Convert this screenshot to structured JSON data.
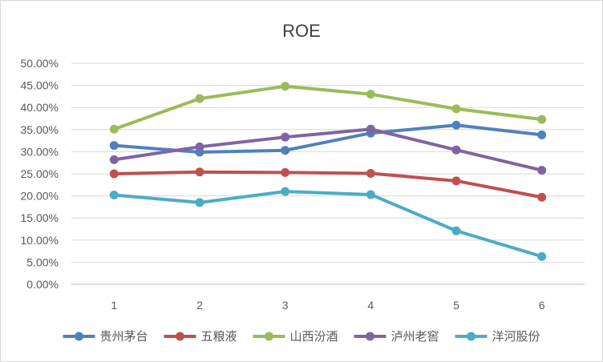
{
  "chart_data": {
    "type": "line",
    "title": "ROE",
    "xlabel": "",
    "ylabel": "",
    "categories": [
      "1",
      "2",
      "3",
      "4",
      "5",
      "6"
    ],
    "ylim": [
      0,
      0.5
    ],
    "yticks": [
      "0.00%",
      "5.00%",
      "10.00%",
      "15.00%",
      "20.00%",
      "25.00%",
      "30.00%",
      "35.00%",
      "40.00%",
      "45.00%",
      "50.00%"
    ],
    "grid": true,
    "legend_position": "bottom",
    "series": [
      {
        "name": "贵州茅台",
        "color": "#4f81bd",
        "values": [
          0.314,
          0.299,
          0.303,
          0.342,
          0.36,
          0.338
        ]
      },
      {
        "name": "五粮液",
        "color": "#c0504d",
        "values": [
          0.25,
          0.254,
          0.253,
          0.251,
          0.234,
          0.197
        ]
      },
      {
        "name": "山西汾酒",
        "color": "#9bbb59",
        "values": [
          0.351,
          0.42,
          0.448,
          0.43,
          0.397,
          0.373
        ]
      },
      {
        "name": "泸州老窖",
        "color": "#8064a2",
        "values": [
          0.282,
          0.311,
          0.333,
          0.351,
          0.304,
          0.258
        ]
      },
      {
        "name": "洋河股份",
        "color": "#4bacc6",
        "values": [
          0.202,
          0.185,
          0.21,
          0.203,
          0.121,
          0.063
        ]
      }
    ]
  }
}
